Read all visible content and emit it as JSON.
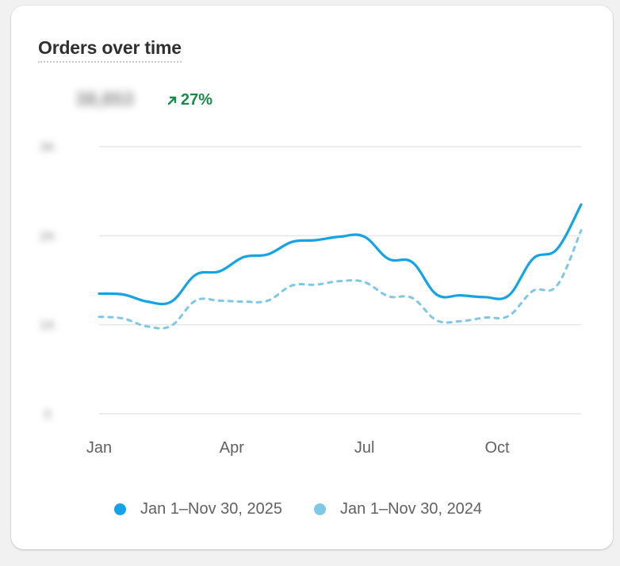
{
  "card": {
    "title": "Orders over time",
    "metric_value": "38,853",
    "change_percent": "27%"
  },
  "colors": {
    "current": "#13a3e6",
    "previous": "#7cc8e6",
    "change_positive": "#1a8a4a",
    "grid": "#e6e6e6"
  },
  "chart_data": {
    "type": "line",
    "title": "Orders over time",
    "xlabel": "",
    "ylabel": "",
    "x_ticks": [
      "Jan",
      "Apr",
      "Jul",
      "Oct"
    ],
    "y_ticks": [
      "0",
      "1K",
      "2K",
      "3K"
    ],
    "y_ticks_blurred": true,
    "ylim": [
      0,
      3000
    ],
    "grid": true,
    "legend_position": "bottom",
    "series": [
      {
        "name": "Jan 1–Nov 30, 2025",
        "style": "solid",
        "values": [
          1350,
          1340,
          1260,
          1260,
          1560,
          1600,
          1760,
          1790,
          1930,
          1950,
          1990,
          1990,
          1740,
          1700,
          1340,
          1330,
          1310,
          1330,
          1740,
          1850,
          2350
        ]
      },
      {
        "name": "Jan 1–Nov 30, 2024",
        "style": "dashed",
        "values": [
          1090,
          1070,
          980,
          990,
          1270,
          1270,
          1260,
          1270,
          1440,
          1450,
          1490,
          1480,
          1320,
          1300,
          1050,
          1040,
          1080,
          1100,
          1380,
          1440,
          2060
        ]
      }
    ]
  }
}
